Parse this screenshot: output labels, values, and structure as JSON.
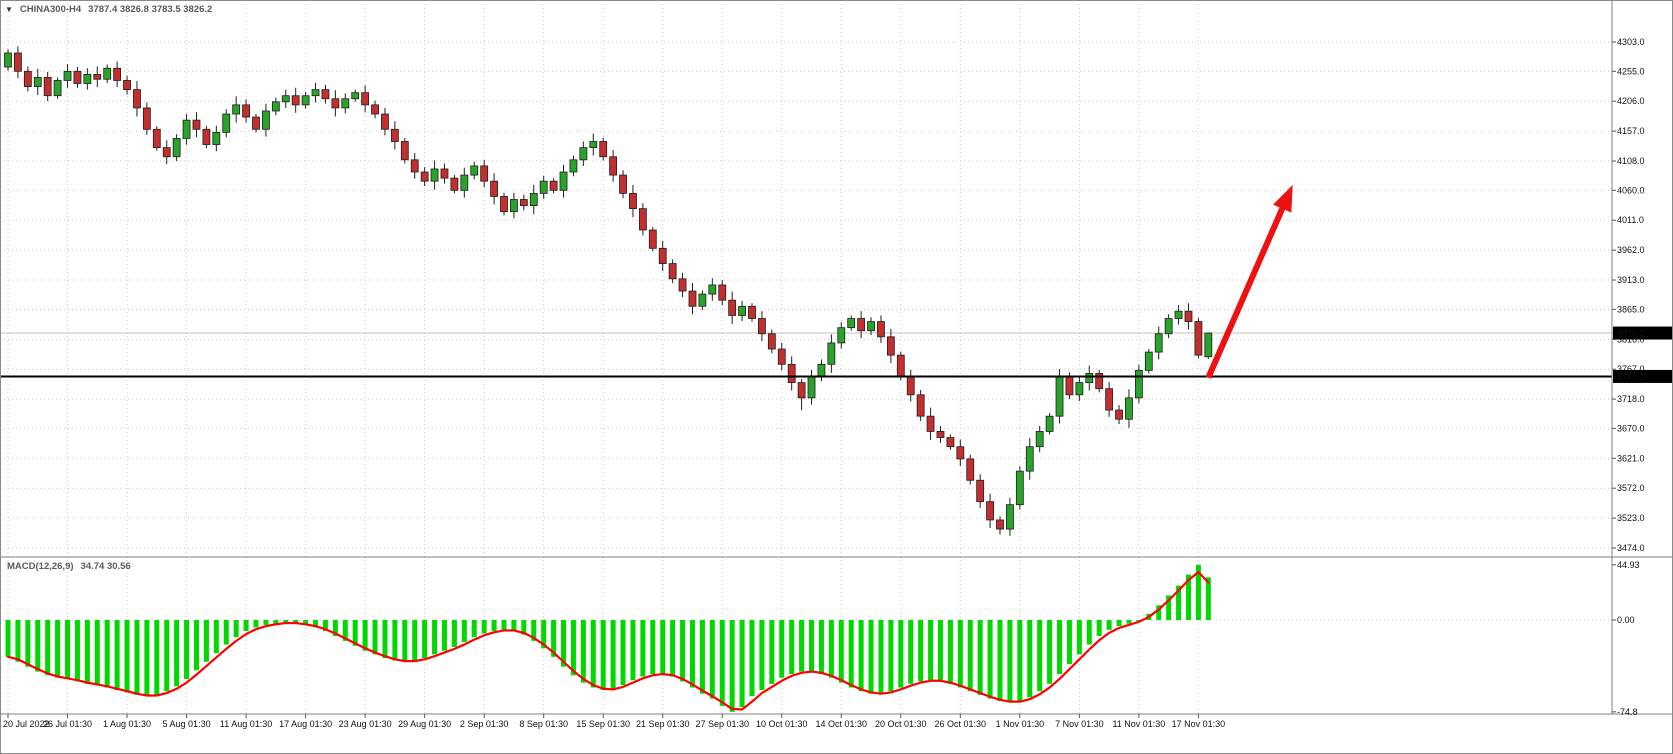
{
  "window": {
    "symbol": "CHINA300-H4",
    "ohlc": "3787.4 3826.8 3783.5 3826.2",
    "dropdown_icon": "▼"
  },
  "colors": {
    "background": "#ffffff",
    "grid": "#c9c9c9",
    "bull": "#29a329",
    "bear": "#c22f2e",
    "outline": "#1f1f1f",
    "axis_text": "#111111",
    "separator": "#808080",
    "current_price_line": "#c0c0c0",
    "badge_bg": "#000000",
    "badge_text": "#ffffff",
    "arrow": "#ee1111",
    "macd_histogram": "#00d800",
    "macd_signal": "#ff0000",
    "hline": "#000000"
  },
  "chart_data": {
    "type": "candlestick",
    "title": "CHINA300-H4",
    "timeframe": "H4",
    "price_axis_ticks": [
      "4303.0",
      "4255.0",
      "4206.0",
      "4157.0",
      "4108.0",
      "4060.0",
      "4011.0",
      "3962.0",
      "3913.0",
      "3865.0",
      "3816.0",
      "3767.0",
      "3718.0",
      "3670.0",
      "3621.0",
      "3572.0",
      "3523.0",
      "3474.0"
    ],
    "time_labels": [
      "20 Jul 2022",
      "26 Jul 01:30",
      "1 Aug 01:30",
      "5 Aug 01:30",
      "11 Aug 01:30",
      "17 Aug 01:30",
      "23 Aug 01:30",
      "29 Aug 01:30",
      "2 Sep 01:30",
      "8 Sep 01:30",
      "15 Sep 01:30",
      "21 Sep 01:30",
      "27 Sep 01:30",
      "10 Oct 01:30",
      "14 Oct 01:30",
      "20 Oct 01:30",
      "26 Oct 01:30",
      "1 Nov 01:30",
      "7 Nov 01:30",
      "11 Nov 01:30",
      "17 Nov 01:30"
    ],
    "time_label_indices": [
      0,
      6,
      12,
      18,
      24,
      30,
      36,
      42,
      48,
      54,
      60,
      66,
      72,
      78,
      84,
      90,
      96,
      102,
      108,
      114,
      120
    ],
    "current_price": {
      "price": 3826.2,
      "label": "3826.2"
    },
    "hline": {
      "price": 3755.1,
      "label": "3755.1"
    },
    "arrow_annotation": {
      "from": {
        "index": 121,
        "price": 3753
      },
      "to": {
        "index": 129.5,
        "price": 4069
      }
    },
    "candles": [
      [
        4262,
        4291,
        4256,
        4285
      ],
      [
        4285,
        4296,
        4244,
        4255
      ],
      [
        4255,
        4263,
        4222,
        4230
      ],
      [
        4230,
        4259,
        4216,
        4245
      ],
      [
        4245,
        4254,
        4206,
        4215
      ],
      [
        4215,
        4245,
        4210,
        4240
      ],
      [
        4240,
        4267,
        4228,
        4255
      ],
      [
        4255,
        4262,
        4228,
        4235
      ],
      [
        4235,
        4260,
        4225,
        4250
      ],
      [
        4250,
        4263,
        4229,
        4242
      ],
      [
        4242,
        4266,
        4236,
        4260
      ],
      [
        4260,
        4271,
        4229,
        4240
      ],
      [
        4240,
        4248,
        4217,
        4225
      ],
      [
        4225,
        4239,
        4181,
        4195
      ],
      [
        4195,
        4204,
        4151,
        4160
      ],
      [
        4160,
        4165,
        4125,
        4130
      ],
      [
        4130,
        4142,
        4103,
        4115
      ],
      [
        4115,
        4152,
        4108,
        4145
      ],
      [
        4145,
        4185,
        4135,
        4175
      ],
      [
        4175,
        4188,
        4147,
        4160
      ],
      [
        4160,
        4166,
        4129,
        4135
      ],
      [
        4135,
        4166,
        4124,
        4155
      ],
      [
        4155,
        4193,
        4147,
        4185
      ],
      [
        4185,
        4214,
        4171,
        4200
      ],
      [
        4200,
        4209,
        4171,
        4180
      ],
      [
        4180,
        4185,
        4155,
        4160
      ],
      [
        4160,
        4202,
        4148,
        4190
      ],
      [
        4190,
        4212,
        4183,
        4205
      ],
      [
        4205,
        4225,
        4195,
        4215
      ],
      [
        4215,
        4228,
        4187,
        4200
      ],
      [
        4200,
        4221,
        4194,
        4215
      ],
      [
        4215,
        4236,
        4204,
        4225
      ],
      [
        4225,
        4233,
        4202,
        4210
      ],
      [
        4210,
        4224,
        4181,
        4195
      ],
      [
        4195,
        4219,
        4186,
        4210
      ],
      [
        4210,
        4225,
        4205,
        4220
      ],
      [
        4220,
        4232,
        4188,
        4200
      ],
      [
        4200,
        4207,
        4178,
        4185
      ],
      [
        4185,
        4195,
        4150,
        4160
      ],
      [
        4160,
        4173,
        4127,
        4140
      ],
      [
        4140,
        4146,
        4104,
        4110
      ],
      [
        4110,
        4121,
        4079,
        4090
      ],
      [
        4090,
        4098,
        4067,
        4075
      ],
      [
        4075,
        4109,
        4061,
        4095
      ],
      [
        4095,
        4104,
        4071,
        4080
      ],
      [
        4080,
        4085,
        4055,
        4060
      ],
      [
        4060,
        4097,
        4048,
        4085
      ],
      [
        4085,
        4107,
        4078,
        4100
      ],
      [
        4100,
        4110,
        4065,
        4075
      ],
      [
        4075,
        4088,
        4037,
        4050
      ],
      [
        4050,
        4056,
        4019,
        4025
      ],
      [
        4025,
        4056,
        4014,
        4045
      ],
      [
        4045,
        4053,
        4027,
        4035
      ],
      [
        4035,
        4069,
        4021,
        4055
      ],
      [
        4055,
        4084,
        4046,
        4075
      ],
      [
        4075,
        4080,
        4055,
        4060
      ],
      [
        4060,
        4102,
        4048,
        4090
      ],
      [
        4090,
        4117,
        4083,
        4110
      ],
      [
        4110,
        4140,
        4100,
        4130
      ],
      [
        4130,
        4153,
        4117,
        4140
      ],
      [
        4140,
        4146,
        4109,
        4115
      ],
      [
        4115,
        4126,
        4074,
        4085
      ],
      [
        4085,
        4093,
        4047,
        4055
      ],
      [
        4055,
        4069,
        4016,
        4030
      ],
      [
        4030,
        4039,
        3986,
        3995
      ],
      [
        3995,
        4000,
        3960,
        3965
      ],
      [
        3965,
        3977,
        3928,
        3940
      ],
      [
        3940,
        3947,
        3908,
        3915
      ],
      [
        3915,
        3925,
        3885,
        3895
      ],
      [
        3895,
        3908,
        3857,
        3870
      ],
      [
        3870,
        3896,
        3864,
        3890
      ],
      [
        3890,
        3916,
        3879,
        3905
      ],
      [
        3905,
        3913,
        3872,
        3880
      ],
      [
        3880,
        3894,
        3841,
        3855
      ],
      [
        3855,
        3879,
        3846,
        3870
      ],
      [
        3870,
        3875,
        3845,
        3850
      ],
      [
        3850,
        3862,
        3813,
        3825
      ],
      [
        3825,
        3832,
        3793,
        3800
      ],
      [
        3800,
        3810,
        3765,
        3775
      ],
      [
        3775,
        3788,
        3732,
        3745
      ],
      [
        3745,
        3751,
        3700,
        3720
      ],
      [
        3720,
        3766,
        3709,
        3755
      ],
      [
        3755,
        3783,
        3747,
        3775
      ],
      [
        3775,
        3824,
        3761,
        3810
      ],
      [
        3810,
        3844,
        3801,
        3835
      ],
      [
        3835,
        3855,
        3830,
        3850
      ],
      [
        3850,
        3862,
        3818,
        3830
      ],
      [
        3830,
        3852,
        3823,
        3845
      ],
      [
        3845,
        3855,
        3810,
        3820
      ],
      [
        3820,
        3833,
        3777,
        3790
      ],
      [
        3790,
        3796,
        3749,
        3755
      ],
      [
        3755,
        3766,
        3714,
        3725
      ],
      [
        3725,
        3733,
        3682,
        3690
      ],
      [
        3690,
        3704,
        3651,
        3665
      ],
      [
        3665,
        3674,
        3646,
        3655
      ],
      [
        3655,
        3660,
        3635,
        3640
      ],
      [
        3640,
        3652,
        3608,
        3620
      ],
      [
        3620,
        3627,
        3578,
        3585
      ],
      [
        3585,
        3595,
        3540,
        3550
      ],
      [
        3550,
        3563,
        3507,
        3520
      ],
      [
        3520,
        3526,
        3496,
        3505
      ],
      [
        3505,
        3556,
        3494,
        3545
      ],
      [
        3545,
        3608,
        3537,
        3600
      ],
      [
        3600,
        3654,
        3586,
        3640
      ],
      [
        3640,
        3674,
        3631,
        3665
      ],
      [
        3665,
        3695,
        3660,
        3690
      ],
      [
        3690,
        3767,
        3678,
        3755
      ],
      [
        3755,
        3762,
        3718,
        3725
      ],
      [
        3725,
        3755,
        3715,
        3745
      ],
      [
        3745,
        3773,
        3732,
        3760
      ],
      [
        3760,
        3766,
        3729,
        3735
      ],
      [
        3735,
        3746,
        3689,
        3700
      ],
      [
        3700,
        3708,
        3677,
        3685
      ],
      [
        3685,
        3734,
        3671,
        3720
      ],
      [
        3720,
        3774,
        3711,
        3765
      ],
      [
        3765,
        3800,
        3760,
        3795
      ],
      [
        3795,
        3837,
        3783,
        3825
      ],
      [
        3825,
        3857,
        3818,
        3850
      ],
      [
        3850,
        3872,
        3840,
        3862
      ],
      [
        3862,
        3875,
        3832,
        3845
      ],
      [
        3845,
        3851,
        3785,
        3790
      ],
      [
        3787.4,
        3826.8,
        3783.5,
        3826.2
      ]
    ],
    "macd": {
      "label": "MACD(12,26,9)",
      "values_text": "34.74 30.56",
      "axis_ticks": [
        "44.93",
        "0.00",
        "-74.8"
      ],
      "histogram": [
        -30,
        -34,
        -38,
        -42,
        -45,
        -47,
        -48,
        -50,
        -52,
        -53,
        -55,
        -57,
        -59,
        -61,
        -62,
        -61,
        -58,
        -54,
        -48,
        -41,
        -34,
        -27,
        -20,
        -14,
        -9,
        -6,
        -4,
        -3,
        -2,
        -3,
        -4,
        -6,
        -9,
        -13,
        -17,
        -21,
        -25,
        -28,
        -31,
        -33,
        -34,
        -33,
        -31,
        -28,
        -25,
        -22,
        -18,
        -14,
        -11,
        -9,
        -8,
        -9,
        -12,
        -17,
        -23,
        -30,
        -38,
        -45,
        -51,
        -55,
        -57,
        -56,
        -53,
        -49,
        -46,
        -44,
        -44,
        -46,
        -50,
        -55,
        -60,
        -64,
        -70,
        -74.8,
        -71,
        -62,
        -57,
        -52,
        -47,
        -44,
        -42,
        -42,
        -44,
        -47,
        -51,
        -55,
        -58,
        -60,
        -60,
        -58,
        -55,
        -52,
        -50,
        -49,
        -50,
        -52,
        -55,
        -58,
        -61,
        -64,
        -66,
        -67,
        -66,
        -63,
        -58,
        -52,
        -44,
        -36,
        -28,
        -20,
        -13,
        -8,
        -5,
        -3,
        0,
        5,
        12,
        20,
        28,
        37,
        44.93,
        34.74
      ],
      "signal": [
        -30,
        -32,
        -36,
        -40,
        -43.5,
        -46,
        -47.5,
        -49,
        -51,
        -52.5,
        -54,
        -56,
        -58,
        -60,
        -61.5,
        -61.5,
        -59.5,
        -56,
        -51,
        -44.5,
        -37.5,
        -30.5,
        -23.5,
        -17,
        -11.5,
        -7.5,
        -5,
        -3.5,
        -2.5,
        -2.5,
        -3.5,
        -5,
        -7.5,
        -11,
        -15,
        -19,
        -23,
        -26.5,
        -29.5,
        -32,
        -33.5,
        -33.5,
        -32,
        -29.5,
        -26.5,
        -23.5,
        -20,
        -16,
        -12.5,
        -10,
        -8.5,
        -8.5,
        -10.5,
        -14.5,
        -20,
        -26.5,
        -34,
        -41.5,
        -48,
        -53,
        -56,
        -56.5,
        -54.5,
        -51,
        -47.5,
        -45,
        -44,
        -45,
        -48,
        -52.5,
        -57.5,
        -62,
        -67,
        -72.4,
        -72.9,
        -66.5,
        -59.5,
        -54.5,
        -49.5,
        -45.5,
        -43,
        -42,
        -43,
        -45.5,
        -49,
        -53,
        -56.5,
        -59,
        -60,
        -59,
        -56.5,
        -53.5,
        -51,
        -49.5,
        -49.5,
        -51,
        -53.5,
        -56.5,
        -59.5,
        -62.5,
        -65,
        -66.5,
        -66.5,
        -64.5,
        -60.5,
        -55,
        -48,
        -40,
        -32,
        -24,
        -16.5,
        -10.5,
        -6.5,
        -4,
        -1.5,
        2.5,
        8.5,
        16,
        24,
        32.5,
        39,
        30.56
      ]
    }
  }
}
